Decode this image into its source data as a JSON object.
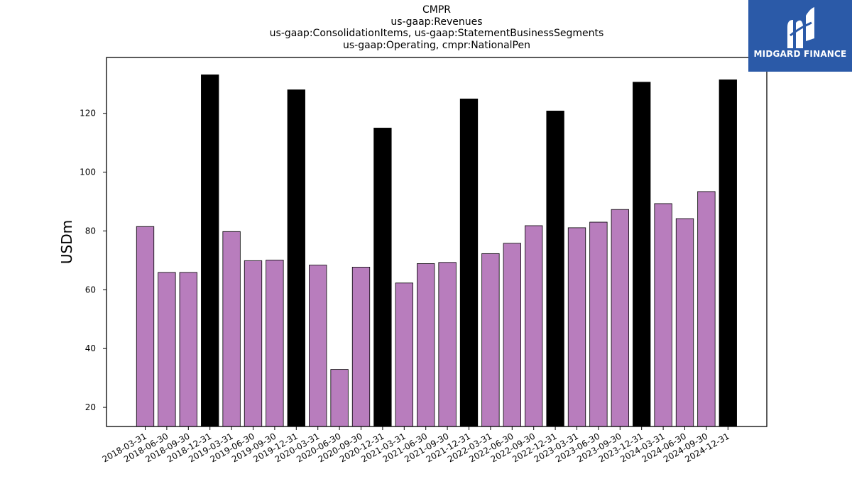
{
  "chart_data": {
    "type": "bar",
    "title_lines": [
      "CMPR",
      "us-gaap:Revenues",
      "us-gaap:ConsolidationItems, us-gaap:StatementBusinessSegments",
      "us-gaap:Operating, cmpr:NationalPen"
    ],
    "xlabel": "",
    "ylabel": "USDm",
    "ylim": [
      13.5,
      139
    ],
    "yticks": [
      20,
      40,
      60,
      80,
      100,
      120
    ],
    "grid": false,
    "categories": [
      "2018-03-31",
      "2018-06-30",
      "2018-09-30",
      "2018-12-31",
      "2019-03-31",
      "2019-06-30",
      "2019-09-30",
      "2019-12-31",
      "2020-03-31",
      "2020-06-30",
      "2020-09-30",
      "2020-12-31",
      "2021-03-31",
      "2021-06-30",
      "2021-09-30",
      "2021-12-31",
      "2022-03-31",
      "2022-06-30",
      "2022-09-30",
      "2022-12-31",
      "2023-03-31",
      "2023-06-30",
      "2023-09-30",
      "2023-12-31",
      "2024-03-31",
      "2024-06-30",
      "2024-09-30",
      "2024-12-31"
    ],
    "values": [
      81.5,
      65.9,
      65.9,
      133.1,
      79.8,
      69.9,
      70.1,
      128.0,
      68.4,
      32.9,
      67.7,
      115.0,
      62.3,
      68.9,
      69.3,
      124.9,
      72.3,
      75.8,
      81.8,
      120.8,
      81.1,
      83.0,
      87.3,
      130.6,
      89.3,
      84.2,
      93.4,
      131.4
    ],
    "colors": {
      "quarter": "#b87dbd",
      "year_end": "#000000",
      "edge": "#000000"
    }
  },
  "branding": {
    "logo_text": "MIDGARD FINANCE",
    "logo_icon": "midgard-m-icon",
    "logo_bg": "#2b5aa8"
  }
}
